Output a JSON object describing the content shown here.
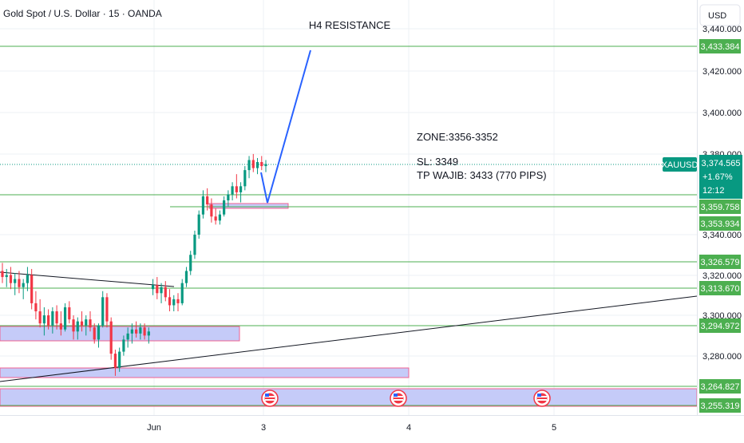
{
  "header": {
    "symbol_title": "Gold Spot / U.S. Dollar · 15 · OANDA",
    "currency_button": "USD"
  },
  "annotations": {
    "h4_resistance": "H4 RESISTANCE",
    "zone": "ZONE:3356-3352",
    "sl": "SL: 3349",
    "tp": "TP WAJIB: 3433 (770 PIPS)"
  },
  "price_badge": {
    "symbol": "XAUUSD",
    "price": "3,374.565",
    "change": "+1.67%",
    "countdown": "12:12"
  },
  "colors": {
    "bull": "#089981",
    "bear": "#f23645",
    "level_line": "#4caf50",
    "level_badge": "#4caf50",
    "zone_fill": "#c5cbf8",
    "zone_border": "#f06292",
    "trendline": "#131722",
    "forecast_arrow": "#2962ff"
  },
  "chart_data": {
    "type": "candlestick",
    "symbol": "XAUUSD",
    "timeframe": "15",
    "x_axis": {
      "ticks": [
        "Jun",
        "3",
        "4",
        "5"
      ]
    },
    "y_axis": {
      "range": [
        3243,
        3445
      ],
      "ticks": [
        "3,280.000",
        "3,300.000",
        "3,320.000",
        "3,340.000",
        "3,380.000",
        "3,400.000",
        "3,420.000",
        "3,440.000"
      ]
    },
    "grid": true,
    "levels": [
      "3,433.384",
      "3,359.758",
      "3,353.934",
      "3,326.579",
      "3,313.670",
      "3,294.972",
      "3,264.827",
      "3,255.319"
    ],
    "last_price": 3374.565,
    "zones": [
      {
        "low": 3291,
        "high": 3298
      },
      {
        "low": 3268,
        "high": 3273
      },
      {
        "low": 3255.319,
        "high": 3264.827
      },
      {
        "low": 3356,
        "high": 3359.758
      }
    ],
    "events": [
      "US",
      "US",
      "US"
    ],
    "candles": [
      [
        3322,
        3326,
        3316,
        3319
      ],
      [
        3319,
        3323,
        3314,
        3320
      ],
      [
        3320,
        3324,
        3313,
        3316
      ],
      [
        3316,
        3321,
        3310,
        3318
      ],
      [
        3318,
        3322,
        3311,
        3314
      ],
      [
        3314,
        3318,
        3308,
        3316
      ],
      [
        3316,
        3324,
        3312,
        3320
      ],
      [
        3320,
        3323,
        3303,
        3306
      ],
      [
        3306,
        3312,
        3298,
        3302
      ],
      [
        3302,
        3308,
        3294,
        3296
      ],
      [
        3296,
        3304,
        3290,
        3300
      ],
      [
        3300,
        3303,
        3293,
        3295
      ],
      [
        3295,
        3304,
        3291,
        3302
      ],
      [
        3302,
        3305,
        3293,
        3296
      ],
      [
        3296,
        3302,
        3290,
        3293
      ],
      [
        3293,
        3306,
        3292,
        3304
      ],
      [
        3304,
        3307,
        3296,
        3298
      ],
      [
        3298,
        3300,
        3288,
        3292
      ],
      [
        3292,
        3299,
        3288,
        3297
      ],
      [
        3297,
        3302,
        3292,
        3295
      ],
      [
        3295,
        3300,
        3290,
        3298
      ],
      [
        3298,
        3302,
        3292,
        3294
      ],
      [
        3294,
        3296,
        3286,
        3288
      ],
      [
        3288,
        3296,
        3284,
        3295
      ],
      [
        3295,
        3312,
        3294,
        3309
      ],
      [
        3309,
        3311,
        3294,
        3297
      ],
      [
        3297,
        3299,
        3278,
        3281
      ],
      [
        3281,
        3283,
        3270,
        3274
      ],
      [
        3274,
        3284,
        3272,
        3282
      ],
      [
        3282,
        3290,
        3280,
        3288
      ],
      [
        3288,
        3294,
        3284,
        3291
      ],
      [
        3291,
        3296,
        3286,
        3293
      ],
      [
        3293,
        3297,
        3289,
        3291
      ],
      [
        3291,
        3296,
        3288,
        3294
      ],
      [
        3294,
        3296,
        3288,
        3290
      ],
      [
        3290,
        3294,
        3286,
        3292
      ],
      [
        3313,
        3318,
        3310,
        3315
      ],
      [
        3315,
        3319,
        3308,
        3311
      ],
      [
        3311,
        3316,
        3306,
        3314
      ],
      [
        3314,
        3317,
        3307,
        3309
      ],
      [
        3309,
        3313,
        3302,
        3305
      ],
      [
        3305,
        3310,
        3302,
        3308
      ],
      [
        3308,
        3311,
        3302,
        3306
      ],
      [
        3306,
        3318,
        3305,
        3316
      ],
      [
        3316,
        3324,
        3314,
        3322
      ],
      [
        3322,
        3332,
        3320,
        3330
      ],
      [
        3330,
        3342,
        3328,
        3340
      ],
      [
        3340,
        3352,
        3338,
        3350
      ],
      [
        3350,
        3362,
        3348,
        3359
      ],
      [
        3359,
        3363,
        3352,
        3355
      ],
      [
        3355,
        3358,
        3346,
        3349
      ],
      [
        3349,
        3353,
        3345,
        3347
      ],
      [
        3347,
        3352,
        3345,
        3350
      ],
      [
        3350,
        3359,
        3349,
        3357
      ],
      [
        3357,
        3362,
        3354,
        3360
      ],
      [
        3360,
        3366,
        3357,
        3364
      ],
      [
        3364,
        3370,
        3358,
        3361
      ],
      [
        3361,
        3366,
        3356,
        3364
      ],
      [
        3364,
        3374,
        3362,
        3372
      ],
      [
        3372,
        3379,
        3368,
        3377
      ],
      [
        3377,
        3380,
        3371,
        3373
      ],
      [
        3373,
        3378,
        3370,
        3376
      ],
      [
        3376,
        3379,
        3372,
        3374
      ],
      [
        3374,
        3377,
        3371,
        3375
      ]
    ]
  }
}
